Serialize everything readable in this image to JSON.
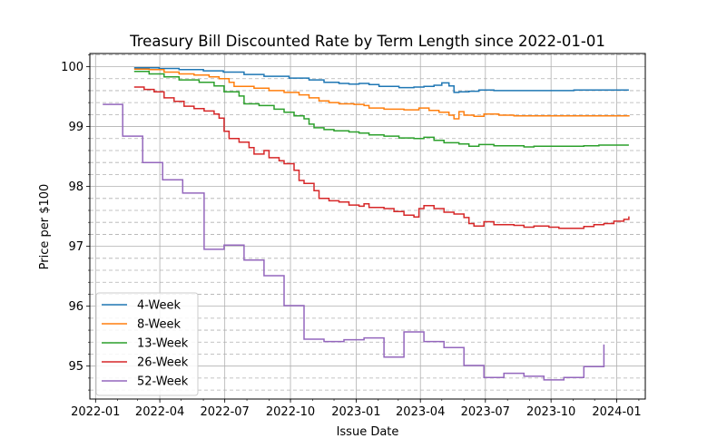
{
  "chart_data": {
    "type": "line",
    "title": "Treasury Bill Discounted Rate by Term Length since 2022-01-01",
    "xlabel": "Issue Date",
    "ylabel": "Price per $100",
    "x_range": [
      "2021-12-24",
      "2024-02-10"
    ],
    "ylim": [
      94.45,
      100.22
    ],
    "x_ticks": [
      {
        "date": "2022-01-01",
        "label": "2022-01"
      },
      {
        "date": "2022-04-01",
        "label": "2022-04"
      },
      {
        "date": "2022-07-01",
        "label": "2022-07"
      },
      {
        "date": "2022-10-01",
        "label": "2022-10"
      },
      {
        "date": "2023-01-01",
        "label": "2023-01"
      },
      {
        "date": "2023-04-01",
        "label": "2023-04"
      },
      {
        "date": "2023-07-01",
        "label": "2023-07"
      },
      {
        "date": "2023-10-01",
        "label": "2023-10"
      },
      {
        "date": "2024-01-01",
        "label": "2024-01"
      }
    ],
    "y_ticks": [
      95,
      96,
      97,
      98,
      99,
      100
    ],
    "grid": {
      "major": true,
      "minor_y": "dashed"
    },
    "legend_position": "lower-left",
    "step": true,
    "series": [
      {
        "name": "4-Week",
        "color": "#1f77b4",
        "points": [
          [
            "2022-02-24",
            99.98
          ],
          [
            "2022-03-31",
            99.97
          ],
          [
            "2022-04-28",
            99.95
          ],
          [
            "2022-06-01",
            99.93
          ],
          [
            "2022-06-29",
            99.91
          ],
          [
            "2022-07-28",
            99.87
          ],
          [
            "2022-08-25",
            99.84
          ],
          [
            "2022-09-29",
            99.81
          ],
          [
            "2022-10-27",
            99.78
          ],
          [
            "2022-11-17",
            99.74
          ],
          [
            "2022-12-08",
            99.72
          ],
          [
            "2022-12-22",
            99.71
          ],
          [
            "2023-01-05",
            99.72
          ],
          [
            "2023-01-19",
            99.7
          ],
          [
            "2023-02-02",
            99.67
          ],
          [
            "2023-03-02",
            99.65
          ],
          [
            "2023-03-23",
            99.66
          ],
          [
            "2023-04-06",
            99.67
          ],
          [
            "2023-04-20",
            99.69
          ],
          [
            "2023-05-01",
            99.73
          ],
          [
            "2023-05-11",
            99.68
          ],
          [
            "2023-05-18",
            99.57
          ],
          [
            "2023-05-25",
            99.58
          ],
          [
            "2023-06-08",
            99.59
          ],
          [
            "2023-06-22",
            99.61
          ],
          [
            "2023-07-13",
            99.6
          ],
          [
            "2023-11-02",
            99.61
          ],
          [
            "2023-12-07",
            99.61
          ],
          [
            "2024-01-18",
            99.61
          ]
        ]
      },
      {
        "name": "8-Week",
        "color": "#ff7f0e",
        "points": [
          [
            "2022-02-24",
            99.96
          ],
          [
            "2022-03-17",
            99.95
          ],
          [
            "2022-04-07",
            99.91
          ],
          [
            "2022-04-28",
            99.88
          ],
          [
            "2022-05-19",
            99.86
          ],
          [
            "2022-06-09",
            99.83
          ],
          [
            "2022-06-23",
            99.8
          ],
          [
            "2022-07-07",
            99.74
          ],
          [
            "2022-07-14",
            99.67
          ],
          [
            "2022-08-11",
            99.64
          ],
          [
            "2022-09-01",
            99.6
          ],
          [
            "2022-09-22",
            99.57
          ],
          [
            "2022-10-13",
            99.53
          ],
          [
            "2022-10-27",
            99.48
          ],
          [
            "2022-11-10",
            99.43
          ],
          [
            "2022-11-24",
            99.4
          ],
          [
            "2022-12-08",
            99.38
          ],
          [
            "2022-12-29",
            99.37
          ],
          [
            "2023-01-12",
            99.35
          ],
          [
            "2023-01-19",
            99.31
          ],
          [
            "2023-02-09",
            99.29
          ],
          [
            "2023-03-09",
            99.28
          ],
          [
            "2023-03-30",
            99.31
          ],
          [
            "2023-04-13",
            99.27
          ],
          [
            "2023-04-27",
            99.24
          ],
          [
            "2023-05-11",
            99.19
          ],
          [
            "2023-05-18",
            99.13
          ],
          [
            "2023-05-25",
            99.25
          ],
          [
            "2023-06-01",
            99.19
          ],
          [
            "2023-06-15",
            99.17
          ],
          [
            "2023-06-29",
            99.21
          ],
          [
            "2023-07-20",
            99.19
          ],
          [
            "2023-08-10",
            99.18
          ],
          [
            "2023-12-14",
            99.18
          ],
          [
            "2024-01-11",
            99.18
          ],
          [
            "2024-01-18",
            99.19
          ]
        ]
      },
      {
        "name": "13-Week",
        "color": "#2ca02c",
        "points": [
          [
            "2022-02-24",
            99.92
          ],
          [
            "2022-03-17",
            99.88
          ],
          [
            "2022-04-07",
            99.83
          ],
          [
            "2022-04-28",
            99.78
          ],
          [
            "2022-05-26",
            99.74
          ],
          [
            "2022-06-16",
            99.68
          ],
          [
            "2022-06-30",
            99.58
          ],
          [
            "2022-07-21",
            99.51
          ],
          [
            "2022-07-28",
            99.38
          ],
          [
            "2022-08-18",
            99.35
          ],
          [
            "2022-09-08",
            99.29
          ],
          [
            "2022-09-22",
            99.24
          ],
          [
            "2022-10-06",
            99.18
          ],
          [
            "2022-10-20",
            99.13
          ],
          [
            "2022-10-27",
            99.04
          ],
          [
            "2022-11-03",
            98.98
          ],
          [
            "2022-11-17",
            98.95
          ],
          [
            "2022-12-01",
            98.93
          ],
          [
            "2022-12-22",
            98.91
          ],
          [
            "2023-01-05",
            98.89
          ],
          [
            "2023-01-19",
            98.86
          ],
          [
            "2023-02-09",
            98.84
          ],
          [
            "2023-03-02",
            98.81
          ],
          [
            "2023-03-23",
            98.8
          ],
          [
            "2023-04-06",
            98.82
          ],
          [
            "2023-04-20",
            98.77
          ],
          [
            "2023-05-04",
            98.73
          ],
          [
            "2023-05-25",
            98.71
          ],
          [
            "2023-06-08",
            98.67
          ],
          [
            "2023-06-22",
            98.7
          ],
          [
            "2023-07-13",
            98.68
          ],
          [
            "2023-08-24",
            98.66
          ],
          [
            "2023-09-07",
            98.67
          ],
          [
            "2023-11-16",
            98.68
          ],
          [
            "2023-12-07",
            98.69
          ],
          [
            "2024-01-18",
            98.69
          ]
        ]
      },
      {
        "name": "26-Week",
        "color": "#d62728",
        "points": [
          [
            "2022-02-24",
            99.66
          ],
          [
            "2022-03-10",
            99.62
          ],
          [
            "2022-03-24",
            99.58
          ],
          [
            "2022-04-07",
            99.48
          ],
          [
            "2022-04-21",
            99.42
          ],
          [
            "2022-05-05",
            99.34
          ],
          [
            "2022-05-19",
            99.3
          ],
          [
            "2022-06-02",
            99.26
          ],
          [
            "2022-06-16",
            99.21
          ],
          [
            "2022-06-23",
            99.14
          ],
          [
            "2022-06-30",
            98.92
          ],
          [
            "2022-07-07",
            98.8
          ],
          [
            "2022-07-21",
            98.74
          ],
          [
            "2022-08-04",
            98.65
          ],
          [
            "2022-08-11",
            98.54
          ],
          [
            "2022-08-25",
            98.6
          ],
          [
            "2022-09-01",
            98.48
          ],
          [
            "2022-09-15",
            98.43
          ],
          [
            "2022-09-22",
            98.38
          ],
          [
            "2022-10-06",
            98.27
          ],
          [
            "2022-10-13",
            98.1
          ],
          [
            "2022-10-20",
            98.05
          ],
          [
            "2022-11-03",
            97.93
          ],
          [
            "2022-11-10",
            97.8
          ],
          [
            "2022-11-24",
            97.76
          ],
          [
            "2022-12-08",
            97.74
          ],
          [
            "2022-12-22",
            97.69
          ],
          [
            "2023-01-05",
            97.67
          ],
          [
            "2023-01-12",
            97.71
          ],
          [
            "2023-01-19",
            97.65
          ],
          [
            "2023-02-09",
            97.63
          ],
          [
            "2023-02-23",
            97.58
          ],
          [
            "2023-03-09",
            97.52
          ],
          [
            "2023-03-23",
            97.49
          ],
          [
            "2023-03-30",
            97.63
          ],
          [
            "2023-04-06",
            97.68
          ],
          [
            "2023-04-20",
            97.63
          ],
          [
            "2023-05-04",
            97.57
          ],
          [
            "2023-05-18",
            97.54
          ],
          [
            "2023-06-01",
            97.48
          ],
          [
            "2023-06-08",
            97.38
          ],
          [
            "2023-06-15",
            97.34
          ],
          [
            "2023-06-29",
            97.41
          ],
          [
            "2023-07-13",
            97.36
          ],
          [
            "2023-08-10",
            97.35
          ],
          [
            "2023-08-24",
            97.32
          ],
          [
            "2023-09-07",
            97.34
          ],
          [
            "2023-09-28",
            97.32
          ],
          [
            "2023-10-12",
            97.3
          ],
          [
            "2023-11-16",
            97.33
          ],
          [
            "2023-11-30",
            97.36
          ],
          [
            "2023-12-14",
            97.38
          ],
          [
            "2023-12-28",
            97.42
          ],
          [
            "2024-01-11",
            97.45
          ],
          [
            "2024-01-18",
            97.5
          ]
        ]
      },
      {
        "name": "52-Week",
        "color": "#9467bd",
        "points": [
          [
            "2022-01-11",
            99.37
          ],
          [
            "2022-02-08",
            98.84
          ],
          [
            "2022-03-08",
            98.4
          ],
          [
            "2022-04-05",
            98.11
          ],
          [
            "2022-05-03",
            97.89
          ],
          [
            "2022-06-02",
            96.95
          ],
          [
            "2022-06-30",
            97.02
          ],
          [
            "2022-07-28",
            96.77
          ],
          [
            "2022-08-25",
            96.51
          ],
          [
            "2022-09-22",
            96.01
          ],
          [
            "2022-10-20",
            95.45
          ],
          [
            "2022-11-17",
            95.41
          ],
          [
            "2022-12-15",
            95.44
          ],
          [
            "2023-01-12",
            95.47
          ],
          [
            "2023-02-09",
            95.15
          ],
          [
            "2023-03-09",
            95.57
          ],
          [
            "2023-04-06",
            95.41
          ],
          [
            "2023-05-04",
            95.31
          ],
          [
            "2023-06-01",
            95.01
          ],
          [
            "2023-06-29",
            94.81
          ],
          [
            "2023-07-27",
            94.88
          ],
          [
            "2023-08-24",
            94.83
          ],
          [
            "2023-09-21",
            94.77
          ],
          [
            "2023-10-19",
            94.81
          ],
          [
            "2023-11-16",
            94.99
          ],
          [
            "2023-12-14",
            95.36
          ]
        ]
      }
    ]
  }
}
